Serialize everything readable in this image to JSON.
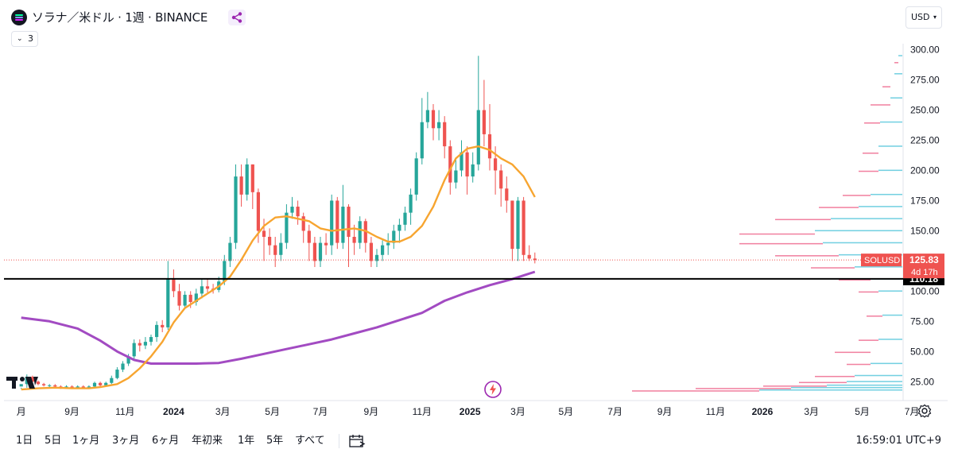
{
  "header": {
    "title": "ソラナ／米ドル · 1週 · BINANCE",
    "indicators_count": "3",
    "currency": "USD"
  },
  "bottom": {
    "ranges": [
      "1日",
      "5日",
      "1ヶ月",
      "3ヶ月",
      "6ヶ月",
      "年初来",
      "1年",
      "5年",
      "すべて"
    ],
    "clock": "16:59:01 UTC+9"
  },
  "colors": {
    "up": "#26a69a",
    "down": "#ef5350",
    "ma_short": "#f7a530",
    "ma_long": "#a24bc2",
    "hline": "#000000",
    "vp_up": "#5bc8dc",
    "vp_down": "#ee6b8f"
  },
  "icons": [
    "solana-logo-icon",
    "share-icon",
    "chevron-down-icon",
    "date-range-icon",
    "gear-icon",
    "tradingview-logo-icon",
    "flash-icon"
  ],
  "chart_data": {
    "type": "candlestick",
    "title": "ソラナ／米ドル · 1週 · BINANCE",
    "xlabel": "",
    "ylabel": "",
    "y_ticks": [
      25,
      50,
      75,
      100,
      125,
      150,
      175,
      200,
      225,
      250,
      275,
      300
    ],
    "y_tick_labels": [
      "25.00",
      "50.00",
      "75.00",
      "100.00",
      "125.00",
      "150.00",
      "175.00",
      "200.00",
      "225.00",
      "250.00",
      "275.00",
      "300.00"
    ],
    "ylim": [
      12,
      305
    ],
    "x_ticks": [
      {
        "label": "月",
        "bold": false,
        "x_week": -23
      },
      {
        "label": "9月",
        "bold": false,
        "x_week": -14
      },
      {
        "label": "11月",
        "bold": false,
        "x_week": -4.6
      },
      {
        "label": "2024",
        "bold": true,
        "x_week": 4
      },
      {
        "label": "3月",
        "bold": false,
        "x_week": 12.7
      },
      {
        "label": "5月",
        "bold": false,
        "x_week": 21.5
      },
      {
        "label": "7月",
        "bold": false,
        "x_week": 30
      },
      {
        "label": "9月",
        "bold": false,
        "x_week": 39
      },
      {
        "label": "11月",
        "bold": false,
        "x_week": 48
      },
      {
        "label": "2025",
        "bold": true,
        "x_week": 56.5
      },
      {
        "label": "3月",
        "bold": false,
        "x_week": 65
      },
      {
        "label": "5月",
        "bold": false,
        "x_week": 73.5
      },
      {
        "label": "7月",
        "bold": false,
        "x_week": 82.2
      },
      {
        "label": "9月",
        "bold": false,
        "x_week": 91
      },
      {
        "label": "11月",
        "bold": false,
        "x_week": 100
      },
      {
        "label": "2026",
        "bold": true,
        "x_week": 108.3
      },
      {
        "label": "3月",
        "bold": false,
        "x_week": 117
      },
      {
        "label": "5月",
        "bold": false,
        "x_week": 126
      },
      {
        "label": "7月",
        "bold": false,
        "x_week": 134.8
      }
    ],
    "candles": [
      [
        -23,
        21,
        23,
        20,
        19
      ],
      [
        -22,
        23,
        29,
        31,
        20
      ],
      [
        -21,
        29,
        25,
        30,
        24
      ],
      [
        -20,
        25,
        23,
        26,
        22
      ],
      [
        -19,
        23,
        22,
        24,
        21
      ],
      [
        -18,
        22,
        22,
        23,
        20
      ],
      [
        -17,
        22,
        21,
        23,
        20
      ],
      [
        -16,
        21,
        20,
        22,
        19
      ],
      [
        -15,
        20,
        21,
        22,
        19
      ],
      [
        -14,
        21,
        20,
        22,
        19
      ],
      [
        -13,
        20,
        21,
        22,
        19
      ],
      [
        -12,
        21,
        20,
        22,
        19
      ],
      [
        -11,
        20,
        21,
        22,
        19
      ],
      [
        -10,
        21,
        24,
        25,
        20
      ],
      [
        -9,
        24,
        22,
        25,
        21
      ],
      [
        -8,
        22,
        24,
        25,
        21
      ],
      [
        -7,
        24,
        28,
        30,
        23
      ],
      [
        -6,
        28,
        35,
        37,
        27
      ],
      [
        -5,
        35,
        40,
        42,
        33
      ],
      [
        -4,
        40,
        46,
        48,
        38
      ],
      [
        -3,
        46,
        57,
        60,
        44
      ],
      [
        -2,
        57,
        55,
        60,
        50
      ],
      [
        -1,
        55,
        58,
        62,
        52
      ],
      [
        0,
        58,
        62,
        64,
        55
      ],
      [
        1,
        62,
        72,
        75,
        58
      ],
      [
        2,
        72,
        70,
        76,
        66
      ],
      [
        3,
        70,
        110,
        125,
        68
      ],
      [
        4,
        110,
        100,
        118,
        95
      ],
      [
        5,
        100,
        88,
        106,
        84
      ],
      [
        6,
        88,
        97,
        100,
        86
      ],
      [
        7,
        97,
        91,
        100,
        86
      ],
      [
        8,
        91,
        98,
        102,
        88
      ],
      [
        9,
        98,
        104,
        110,
        94
      ],
      [
        10,
        104,
        102,
        110,
        99
      ],
      [
        11,
        102,
        101,
        106,
        98
      ],
      [
        12,
        101,
        108,
        112,
        99
      ],
      [
        13,
        108,
        125,
        130,
        105
      ],
      [
        14,
        125,
        140,
        145,
        120
      ],
      [
        15,
        140,
        195,
        205,
        135
      ],
      [
        16,
        195,
        180,
        205,
        170
      ],
      [
        17,
        180,
        205,
        210,
        175
      ],
      [
        18,
        205,
        182,
        205,
        168
      ],
      [
        19,
        182,
        150,
        185,
        140
      ],
      [
        20,
        150,
        145,
        160,
        125
      ],
      [
        21,
        145,
        138,
        152,
        130
      ],
      [
        22,
        138,
        130,
        145,
        120
      ],
      [
        23,
        130,
        140,
        148,
        125
      ],
      [
        24,
        140,
        165,
        172,
        135
      ],
      [
        25,
        165,
        170,
        178,
        160
      ],
      [
        26,
        170,
        162,
        175,
        155
      ],
      [
        27,
        162,
        150,
        165,
        140
      ],
      [
        28,
        150,
        140,
        155,
        125
      ],
      [
        29,
        140,
        125,
        145,
        120
      ],
      [
        30,
        125,
        140,
        145,
        120
      ],
      [
        31,
        140,
        138,
        148,
        130
      ],
      [
        32,
        138,
        175,
        180,
        130
      ],
      [
        33,
        175,
        140,
        178,
        135
      ],
      [
        34,
        140,
        170,
        188,
        135
      ],
      [
        35,
        170,
        145,
        172,
        120
      ],
      [
        36,
        145,
        140,
        155,
        130
      ],
      [
        37,
        140,
        158,
        162,
        135
      ],
      [
        38,
        158,
        140,
        160,
        132
      ],
      [
        39,
        140,
        125,
        145,
        120
      ],
      [
        40,
        125,
        130,
        135,
        120
      ],
      [
        41,
        130,
        138,
        142,
        125
      ],
      [
        42,
        138,
        140,
        148,
        130
      ],
      [
        43,
        140,
        150,
        155,
        135
      ],
      [
        44,
        150,
        155,
        160,
        140
      ],
      [
        45,
        155,
        165,
        170,
        150
      ],
      [
        46,
        165,
        180,
        185,
        155
      ],
      [
        47,
        180,
        210,
        215,
        175
      ],
      [
        48,
        210,
        240,
        260,
        205
      ],
      [
        49,
        240,
        250,
        265,
        235
      ],
      [
        50,
        250,
        235,
        255,
        225
      ],
      [
        51,
        235,
        240,
        250,
        225
      ],
      [
        52,
        240,
        220,
        245,
        210
      ],
      [
        53,
        220,
        190,
        225,
        180
      ],
      [
        54,
        190,
        200,
        210,
        185
      ],
      [
        55,
        200,
        215,
        225,
        195
      ],
      [
        56,
        215,
        195,
        220,
        180
      ],
      [
        57,
        195,
        205,
        215,
        190
      ],
      [
        58,
        205,
        250,
        295,
        200
      ],
      [
        59,
        250,
        230,
        275,
        220
      ],
      [
        60,
        230,
        210,
        255,
        200
      ],
      [
        61,
        210,
        200,
        220,
        180
      ],
      [
        62,
        200,
        185,
        205,
        170
      ],
      [
        63,
        185,
        175,
        195,
        165
      ],
      [
        64,
        175,
        135,
        175,
        125
      ],
      [
        65,
        135,
        175,
        178,
        125
      ],
      [
        66,
        175,
        130,
        178,
        125
      ],
      [
        67,
        130,
        127,
        138,
        125
      ],
      [
        68,
        127,
        125.83,
        132,
        123
      ]
    ],
    "ma_short_name": "",
    "ma_short": [
      [
        -23,
        18.5
      ],
      [
        -20,
        19.5
      ],
      [
        -17,
        20
      ],
      [
        -14,
        19.5
      ],
      [
        -11,
        19.5
      ],
      [
        -9,
        20.5
      ],
      [
        -6,
        23
      ],
      [
        -4,
        28
      ],
      [
        -2,
        36
      ],
      [
        0,
        46
      ],
      [
        2,
        58
      ],
      [
        4,
        74
      ],
      [
        6,
        86
      ],
      [
        8,
        92
      ],
      [
        10,
        98
      ],
      [
        12,
        104
      ],
      [
        14,
        112
      ],
      [
        16,
        126
      ],
      [
        18,
        142
      ],
      [
        20,
        154
      ],
      [
        22,
        161
      ],
      [
        24,
        162
      ],
      [
        26,
        160
      ],
      [
        28,
        158
      ],
      [
        30,
        152
      ],
      [
        32,
        150
      ],
      [
        34,
        151
      ],
      [
        36,
        152
      ],
      [
        38,
        150
      ],
      [
        40,
        145
      ],
      [
        42,
        141
      ],
      [
        44,
        141
      ],
      [
        46,
        145
      ],
      [
        48,
        154
      ],
      [
        50,
        170
      ],
      [
        52,
        192
      ],
      [
        54,
        210
      ],
      [
        56,
        218
      ],
      [
        58,
        220
      ],
      [
        60,
        217
      ],
      [
        62,
        210
      ],
      [
        64,
        205
      ],
      [
        66,
        195
      ],
      [
        68,
        178
      ]
    ],
    "ma_long_name": "",
    "ma_long": [
      [
        -23,
        78
      ],
      [
        -18,
        75
      ],
      [
        -13,
        69
      ],
      [
        -9,
        59
      ],
      [
        -6,
        50
      ],
      [
        -3,
        43
      ],
      [
        0,
        40
      ],
      [
        4,
        40
      ],
      [
        8,
        40
      ],
      [
        12,
        40.5
      ],
      [
        16,
        44
      ],
      [
        20,
        48
      ],
      [
        24,
        52
      ],
      [
        28,
        56
      ],
      [
        32,
        60
      ],
      [
        36,
        65
      ],
      [
        40,
        70
      ],
      [
        44,
        76
      ],
      [
        48,
        82
      ],
      [
        52,
        92
      ],
      [
        56,
        99
      ],
      [
        60,
        105
      ],
      [
        64,
        110
      ],
      [
        66,
        113
      ],
      [
        68,
        116
      ]
    ],
    "price_line": 125.83,
    "price_label": "125.83",
    "symbol_label": "SOLUSD",
    "countdown_label": "4d 17h",
    "horizontal_line": 110.18,
    "horizontal_line_label": "110.18",
    "volume_profile": {
      "price_step": 1.2,
      "up": [
        [
          18,
          180
        ],
        [
          20,
          140
        ],
        [
          22,
          95
        ],
        [
          25,
          70
        ],
        [
          30,
          60
        ],
        [
          40,
          40
        ],
        [
          60,
          30
        ],
        [
          80,
          25
        ],
        [
          100,
          30
        ],
        [
          110,
          40
        ],
        [
          120,
          60
        ],
        [
          130,
          80
        ],
        [
          140,
          100
        ],
        [
          150,
          110
        ],
        [
          160,
          90
        ],
        [
          170,
          55
        ],
        [
          180,
          40
        ],
        [
          200,
          30
        ],
        [
          220,
          30
        ],
        [
          240,
          28
        ],
        [
          260,
          15
        ],
        [
          280,
          10
        ],
        [
          295,
          5
        ]
      ],
      "down": [
        [
          18,
          160
        ],
        [
          20,
          120
        ],
        [
          22,
          80
        ],
        [
          25,
          60
        ],
        [
          30,
          50
        ],
        [
          40,
          30
        ],
        [
          50,
          45
        ],
        [
          60,
          25
        ],
        [
          80,
          20
        ],
        [
          100,
          25
        ],
        [
          110,
          40
        ],
        [
          120,
          55
        ],
        [
          130,
          80
        ],
        [
          140,
          105
        ],
        [
          148,
          95
        ],
        [
          160,
          70
        ],
        [
          170,
          50
        ],
        [
          180,
          35
        ],
        [
          200,
          25
        ],
        [
          215,
          20
        ],
        [
          240,
          20
        ],
        [
          255,
          25
        ],
        [
          270,
          10
        ],
        [
          290,
          5
        ]
      ]
    }
  }
}
